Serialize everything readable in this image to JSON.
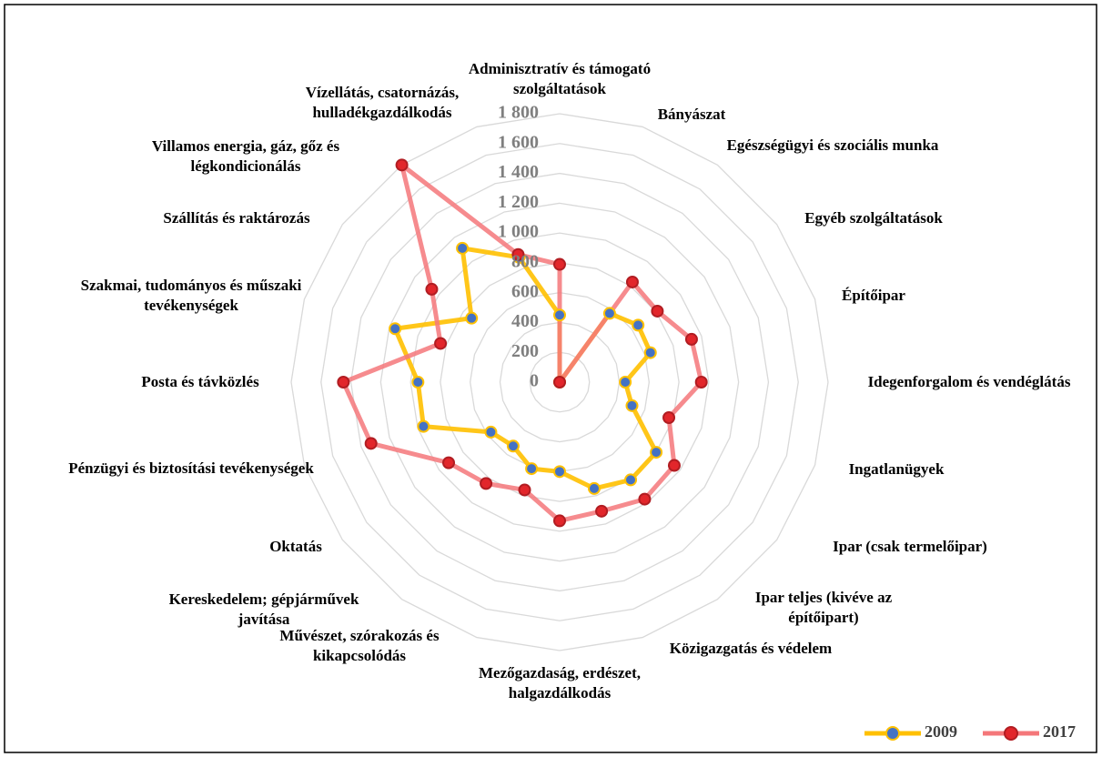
{
  "chart_data": {
    "type": "radar",
    "categories": [
      "Adminisztratív és támogató szolgáltatások",
      "Bányászat",
      "Egészségügyi és szociális munka",
      "Egyéb szolgáltatások",
      "Építőipar",
      "Idegenforgalom és vendéglátás",
      "Ingatlanügyek",
      "Ipar (csak termelőipar)",
      "Ipar teljes (kivéve az építőipart)",
      "Közigazgatás és védelem",
      "Mezőgazdaság, erdészet, halgazdálkodás",
      "Művészet, szórakozás és kikapcsolódás",
      "Kereskedelem; gépjárművek javítása",
      "Oktatás",
      "Pénzügyi és biztosítási tevékenységek",
      "Posta és távközlés",
      "Szakmai, tudományos és műszaki tevékenységek",
      "Szállítás és raktározás",
      "Villamos energia, gáz, gőz és légkondicionálás",
      "Vízellátás, csatornázás, hulladékgazdálkodás"
    ],
    "series": [
      {
        "name": "2009",
        "color": "#ffc000",
        "marker_color": "#4472c4",
        "values": [
          450,
          0,
          570,
          650,
          640,
          440,
          510,
          800,
          810,
          750,
          600,
          610,
          530,
          570,
          960,
          950,
          1160,
          730,
          1110,
          880
        ]
      },
      {
        "name": "2017",
        "color": "#f4777a",
        "marker_color": "#e2262b",
        "values": [
          790,
          0,
          830,
          810,
          930,
          950,
          770,
          950,
          970,
          910,
          930,
          760,
          840,
          920,
          1330,
          1450,
          840,
          1060,
          1800,
          900
        ]
      }
    ],
    "ylim": [
      0,
      1800
    ],
    "yticks": [
      0,
      200,
      400,
      600,
      800,
      {
        "value": 1000,
        "label": "1 000"
      },
      {
        "value": 1200,
        "label": "1 200"
      },
      {
        "value": 1400,
        "label": "1 400"
      },
      {
        "value": 1600,
        "label": "1 600"
      },
      {
        "value": 1800,
        "label": "1 800"
      }
    ],
    "grid": true,
    "legend": "bottom-right"
  }
}
